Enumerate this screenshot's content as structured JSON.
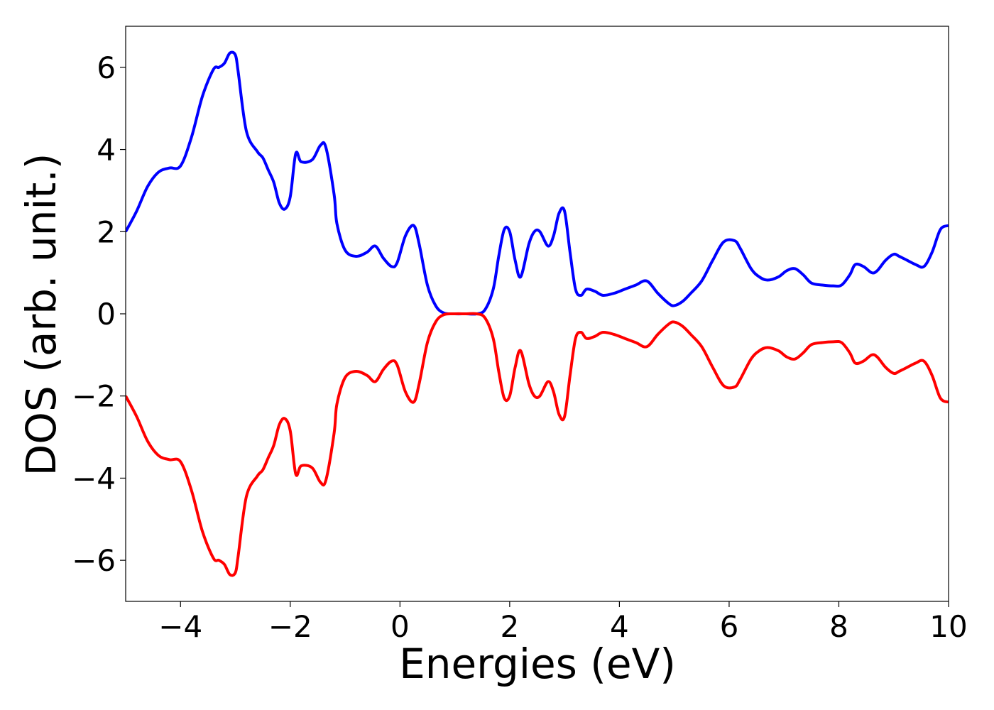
{
  "chart_data": {
    "type": "line",
    "title": "",
    "xlabel": "Energies (eV)",
    "ylabel": "DOS (arb. unit.)",
    "xlim": [
      -5,
      10
    ],
    "ylim": [
      -7,
      7
    ],
    "xticks": [
      -4,
      -2,
      0,
      2,
      4,
      6,
      8,
      10
    ],
    "xtick_labels": [
      "−4",
      "−2",
      "0",
      "2",
      "4",
      "6",
      "8",
      "10"
    ],
    "yticks": [
      -6,
      -4,
      -2,
      0,
      2,
      4,
      6
    ],
    "ytick_labels": [
      "−6",
      "−4",
      "−2",
      "0",
      "2",
      "4",
      "6"
    ],
    "grid": false,
    "legend": "none",
    "colors": {
      "spin_up": "#0000ff",
      "spin_down": "#ff0000"
    },
    "x": [
      -5.0,
      -4.8,
      -4.6,
      -4.4,
      -4.2,
      -4.0,
      -3.8,
      -3.6,
      -3.4,
      -3.3,
      -3.2,
      -3.1,
      -3.0,
      -2.95,
      -2.8,
      -2.6,
      -2.5,
      -2.4,
      -2.3,
      -2.2,
      -2.1,
      -2.0,
      -1.9,
      -1.8,
      -1.6,
      -1.45,
      -1.35,
      -1.2,
      -1.15,
      -1.0,
      -0.8,
      -0.6,
      -0.45,
      -0.3,
      -0.15,
      -0.05,
      0.1,
      0.25,
      0.35,
      0.5,
      0.65,
      0.8,
      1.0,
      1.2,
      1.4,
      1.55,
      1.7,
      1.8,
      1.9,
      2.0,
      2.1,
      2.2,
      2.35,
      2.45,
      2.55,
      2.7,
      2.8,
      2.9,
      3.0,
      3.1,
      3.2,
      3.3,
      3.4,
      3.55,
      3.7,
      3.9,
      4.1,
      4.3,
      4.5,
      4.7,
      4.9,
      5.0,
      5.15,
      5.3,
      5.5,
      5.7,
      5.9,
      6.1,
      6.2,
      6.4,
      6.55,
      6.7,
      6.9,
      7.05,
      7.2,
      7.35,
      7.5,
      7.7,
      7.9,
      8.05,
      8.2,
      8.3,
      8.45,
      8.6,
      8.7,
      8.85,
      9.0,
      9.1,
      9.25,
      9.4,
      9.55,
      9.7,
      9.85,
      10.0
    ],
    "series": [
      {
        "values": [
          2.0,
          2.5,
          3.1,
          3.45,
          3.55,
          3.6,
          4.3,
          5.3,
          5.95,
          6.0,
          6.1,
          6.35,
          6.3,
          5.9,
          4.45,
          3.95,
          3.8,
          3.5,
          3.2,
          2.7,
          2.55,
          2.85,
          3.9,
          3.7,
          3.75,
          4.1,
          4.05,
          2.9,
          2.2,
          1.55,
          1.4,
          1.5,
          1.65,
          1.35,
          1.15,
          1.25,
          1.9,
          2.15,
          1.7,
          0.7,
          0.2,
          0.02,
          0.0,
          0.0,
          0.0,
          0.1,
          0.6,
          1.4,
          2.05,
          2.0,
          1.3,
          0.9,
          1.7,
          2.0,
          2.0,
          1.65,
          1.9,
          2.45,
          2.5,
          1.5,
          0.6,
          0.45,
          0.6,
          0.55,
          0.45,
          0.5,
          0.6,
          0.7,
          0.8,
          0.5,
          0.25,
          0.2,
          0.3,
          0.5,
          0.8,
          1.3,
          1.75,
          1.78,
          1.6,
          1.1,
          0.9,
          0.82,
          0.9,
          1.05,
          1.1,
          0.95,
          0.75,
          0.7,
          0.68,
          0.7,
          0.95,
          1.2,
          1.15,
          1.0,
          1.05,
          1.3,
          1.45,
          1.4,
          1.3,
          1.2,
          1.15,
          1.5,
          2.05,
          2.15
        ]
      },
      {
        "values": [
          -2.0,
          -2.5,
          -3.1,
          -3.45,
          -3.55,
          -3.6,
          -4.3,
          -5.3,
          -5.95,
          -6.0,
          -6.1,
          -6.35,
          -6.3,
          -5.9,
          -4.45,
          -3.95,
          -3.8,
          -3.5,
          -3.2,
          -2.7,
          -2.55,
          -2.85,
          -3.9,
          -3.7,
          -3.75,
          -4.1,
          -4.05,
          -2.9,
          -2.2,
          -1.55,
          -1.4,
          -1.5,
          -1.65,
          -1.35,
          -1.15,
          -1.25,
          -1.9,
          -2.15,
          -1.7,
          -0.7,
          -0.2,
          -0.02,
          0.0,
          0.0,
          0.0,
          -0.1,
          -0.6,
          -1.4,
          -2.05,
          -2.0,
          -1.3,
          -0.9,
          -1.7,
          -2.0,
          -2.0,
          -1.65,
          -1.9,
          -2.45,
          -2.5,
          -1.5,
          -0.6,
          -0.45,
          -0.6,
          -0.55,
          -0.45,
          -0.5,
          -0.6,
          -0.7,
          -0.8,
          -0.5,
          -0.25,
          -0.2,
          -0.3,
          -0.5,
          -0.8,
          -1.3,
          -1.75,
          -1.78,
          -1.6,
          -1.1,
          -0.9,
          -0.82,
          -0.9,
          -1.05,
          -1.1,
          -0.95,
          -0.75,
          -0.7,
          -0.68,
          -0.7,
          -0.95,
          -1.2,
          -1.15,
          -1.0,
          -1.05,
          -1.3,
          -1.45,
          -1.4,
          -1.3,
          -1.2,
          -1.15,
          -1.5,
          -2.05,
          -2.15
        ]
      }
    ]
  }
}
